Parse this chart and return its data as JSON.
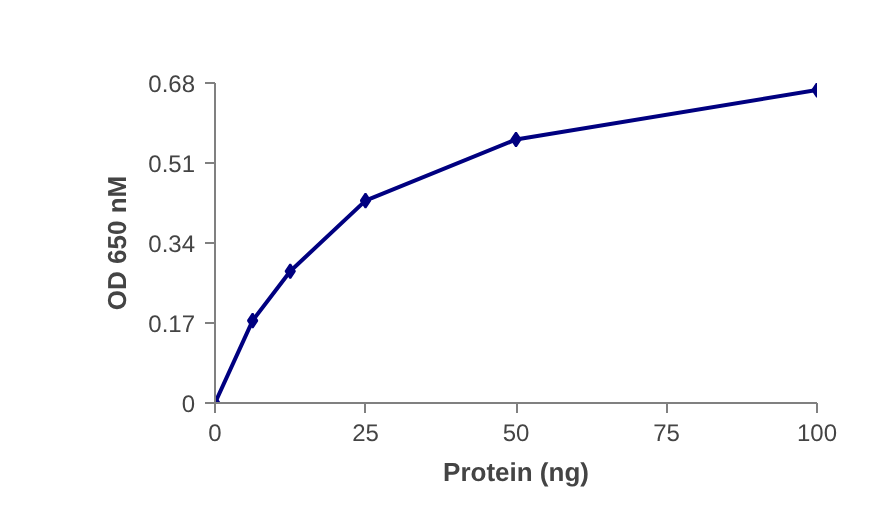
{
  "chart_data": {
    "type": "line",
    "xlabel": "Protein (ng)",
    "ylabel": "OD 650 nM",
    "x": [
      0,
      6.25,
      12.5,
      25,
      50,
      100
    ],
    "series": [
      {
        "color": "#000080",
        "values": [
          0,
          0.175,
          0.28,
          0.43,
          0.56,
          0.665
        ]
      }
    ],
    "xlim": [
      0,
      100
    ],
    "xticks": [
      0,
      25,
      50,
      75,
      100
    ],
    "ylim": [
      0,
      0.68
    ],
    "yticks": [
      0,
      0.17,
      0.34,
      0.51,
      0.68
    ],
    "marker": "diamond",
    "line_style": "solid",
    "grid": false
  }
}
